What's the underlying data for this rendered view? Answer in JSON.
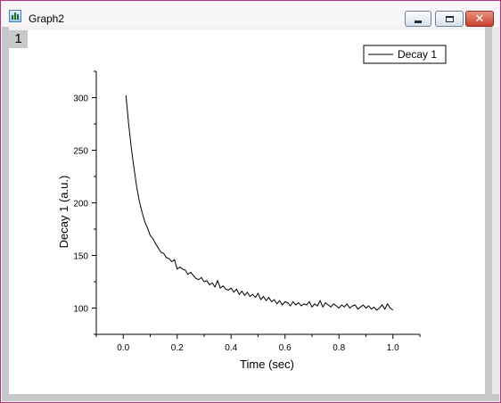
{
  "window": {
    "title": "Graph2",
    "buttons": {
      "minimize_icon": "minimize-icon",
      "maximize_icon": "maximize-icon",
      "close_icon": "close-icon"
    }
  },
  "layer_label": "1",
  "colors": {
    "window_border": "#b1367a",
    "close_button": "#c9442f",
    "line": "#000000"
  },
  "chart_data": {
    "type": "line",
    "xlabel": "Time (sec)",
    "ylabel": "Decay 1 (a.u.)",
    "xlim": [
      -0.1,
      1.1
    ],
    "ylim": [
      75,
      325
    ],
    "xticks": [
      0.0,
      0.2,
      0.4,
      0.6,
      0.8,
      1.0
    ],
    "xtick_labels": [
      "0.0",
      "0.2",
      "0.4",
      "0.6",
      "0.8",
      "1.0"
    ],
    "yticks": [
      100,
      150,
      200,
      250,
      300
    ],
    "ytick_labels": [
      "100",
      "150",
      "200",
      "250",
      "300"
    ],
    "legend": {
      "position": "top-right"
    },
    "series": [
      {
        "name": "Decay 1",
        "x": [
          0.01,
          0.02,
          0.03,
          0.04,
          0.05,
          0.06,
          0.07,
          0.08,
          0.09,
          0.1,
          0.11,
          0.12,
          0.13,
          0.14,
          0.15,
          0.16,
          0.17,
          0.18,
          0.19,
          0.2,
          0.21,
          0.22,
          0.23,
          0.24,
          0.25,
          0.26,
          0.27,
          0.28,
          0.29,
          0.3,
          0.31,
          0.32,
          0.33,
          0.34,
          0.35,
          0.36,
          0.37,
          0.38,
          0.39,
          0.4,
          0.41,
          0.42,
          0.43,
          0.44,
          0.45,
          0.46,
          0.47,
          0.48,
          0.49,
          0.5,
          0.51,
          0.52,
          0.53,
          0.54,
          0.55,
          0.56,
          0.57,
          0.58,
          0.59,
          0.6,
          0.61,
          0.62,
          0.63,
          0.64,
          0.65,
          0.66,
          0.67,
          0.68,
          0.69,
          0.7,
          0.71,
          0.72,
          0.73,
          0.74,
          0.75,
          0.76,
          0.77,
          0.78,
          0.79,
          0.8,
          0.81,
          0.82,
          0.83,
          0.84,
          0.85,
          0.86,
          0.87,
          0.88,
          0.89,
          0.9,
          0.91,
          0.92,
          0.93,
          0.94,
          0.95,
          0.96,
          0.97,
          0.98,
          0.99,
          1.0
        ],
        "y": [
          302,
          275,
          252,
          233,
          215,
          201,
          191,
          182,
          176,
          169,
          166,
          161,
          157,
          153,
          152,
          148,
          147,
          144,
          146,
          137,
          139,
          137,
          136,
          132,
          134,
          131,
          128,
          127,
          129,
          125,
          126,
          122,
          124,
          120,
          126,
          119,
          121,
          118,
          117,
          119,
          115,
          118,
          113,
          116,
          112,
          115,
          111,
          113,
          110,
          114,
          108,
          111,
          107,
          110,
          106,
          108,
          104,
          107,
          103,
          106,
          105,
          102,
          106,
          103,
          105,
          102,
          104,
          103,
          106,
          101,
          104,
          102,
          107,
          101,
          105,
          103,
          101,
          104,
          102,
          100,
          103,
          101,
          104,
          100,
          102,
          103,
          99,
          101,
          103,
          100,
          102,
          99,
          101,
          98,
          100,
          103,
          99,
          104,
          100,
          98
        ]
      }
    ]
  }
}
